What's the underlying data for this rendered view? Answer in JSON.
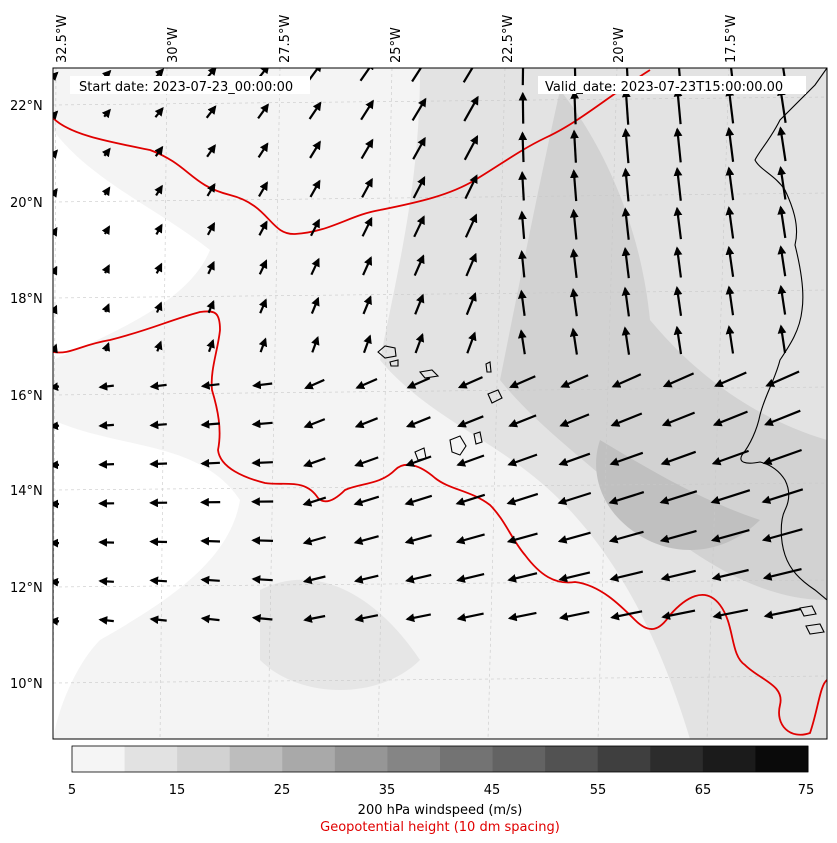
{
  "header": {
    "start_date": "Start date: 2023-07-23_00:00:00",
    "valid_date": "Valid_date: 2023-07-23T15:00:00.00"
  },
  "longitude_labels": [
    "32.5°W",
    "30°W",
    "27.5°W",
    "25°W",
    "22.5°W",
    "20°W",
    "17.5°W"
  ],
  "latitude_labels": [
    "22°N",
    "20°N",
    "18°N",
    "16°N",
    "14°N",
    "12°N",
    "10°N"
  ],
  "colorbar": {
    "ticks": [
      "5",
      "15",
      "25",
      "35",
      "45",
      "55",
      "65",
      "75"
    ],
    "label": "200 hPa windspeed (m/s)",
    "colors": [
      "#f5f5f5",
      "#e2e2e2",
      "#d2d2d2",
      "#bdbdbd",
      "#a9a9a9",
      "#969696",
      "#858585",
      "#737373",
      "#636363",
      "#525252",
      "#3f3f3f",
      "#2c2c2c",
      "#1b1b1b",
      "#0a0a0a"
    ]
  },
  "contour_legend": {
    "label": "Geopotential height (10 dm spacing)",
    "color": "#e00000"
  },
  "map": {
    "projection": "PlateCarree",
    "lon_range": [
      -33,
      -15.6
    ],
    "lat_range": [
      9,
      22.7
    ],
    "gridlines": true
  }
}
